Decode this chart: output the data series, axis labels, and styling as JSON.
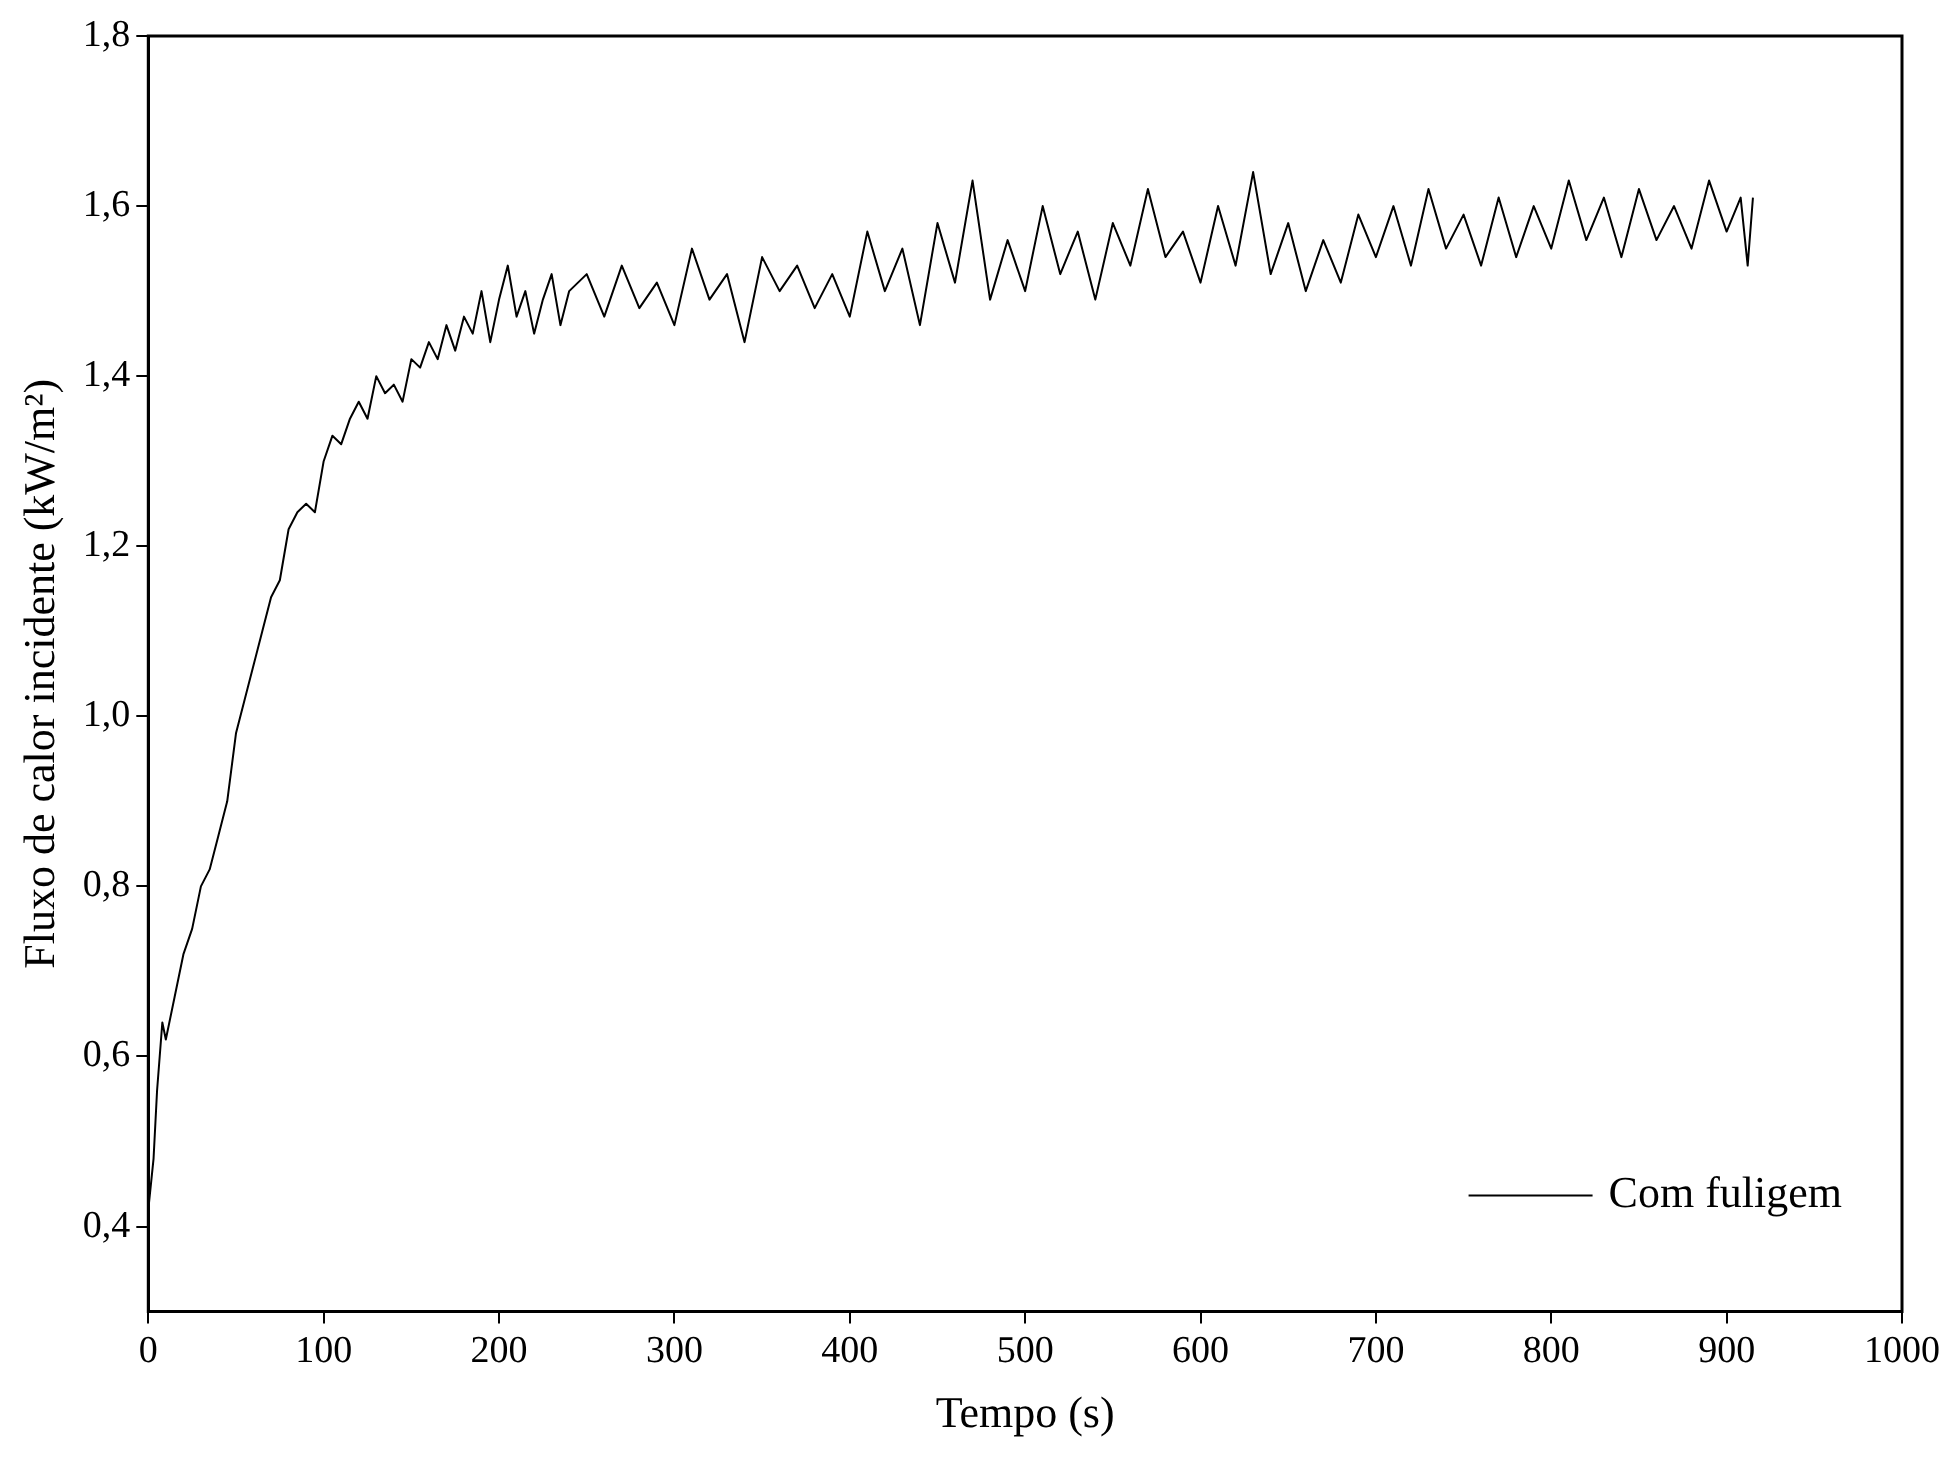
{
  "chart_data": {
    "type": "line",
    "xlabel": "Tempo (s)",
    "ylabel": "Fluxo de calor incidente (kW/m²)",
    "xlim": [
      0,
      1000
    ],
    "xticks": [
      0,
      100,
      200,
      300,
      400,
      500,
      600,
      700,
      800,
      900,
      1000
    ],
    "ylim": [
      0.3,
      1.8
    ],
    "yticks": [
      {
        "value": 0.4,
        "label": "0,4"
      },
      {
        "value": 0.6,
        "label": "0,6"
      },
      {
        "value": 0.8,
        "label": "0,8"
      },
      {
        "value": 1.0,
        "label": "1,0"
      },
      {
        "value": 1.2,
        "label": "1,2"
      },
      {
        "value": 1.4,
        "label": "1,4"
      },
      {
        "value": 1.6,
        "label": "1,6"
      },
      {
        "value": 1.8,
        "label": "1,8"
      }
    ],
    "grid": false,
    "legend": "bottom right",
    "marker": "none",
    "line_style": "solid",
    "x": [
      0,
      3,
      5,
      8,
      10,
      15,
      20,
      25,
      30,
      35,
      40,
      45,
      50,
      55,
      60,
      65,
      70,
      75,
      80,
      85,
      90,
      95,
      100,
      105,
      110,
      115,
      120,
      125,
      130,
      135,
      140,
      145,
      150,
      155,
      160,
      165,
      170,
      175,
      180,
      185,
      190,
      195,
      200,
      205,
      210,
      215,
      220,
      225,
      230,
      235,
      240,
      250,
      260,
      270,
      280,
      290,
      300,
      310,
      320,
      330,
      340,
      350,
      360,
      370,
      380,
      390,
      400,
      410,
      420,
      430,
      440,
      450,
      460,
      470,
      480,
      490,
      500,
      510,
      520,
      530,
      540,
      550,
      560,
      570,
      580,
      590,
      600,
      610,
      620,
      630,
      640,
      650,
      660,
      670,
      680,
      690,
      700,
      710,
      720,
      730,
      740,
      750,
      760,
      770,
      780,
      790,
      800,
      810,
      820,
      830,
      840,
      850,
      860,
      870,
      880,
      890,
      900,
      908,
      912,
      915
    ],
    "series": [
      {
        "name": "Com fuligem",
        "color": "#000000",
        "values": [
          0.42,
          0.48,
          0.56,
          0.64,
          0.62,
          0.67,
          0.72,
          0.75,
          0.8,
          0.82,
          0.86,
          0.9,
          0.98,
          1.02,
          1.06,
          1.1,
          1.14,
          1.16,
          1.22,
          1.24,
          1.25,
          1.24,
          1.3,
          1.33,
          1.32,
          1.35,
          1.37,
          1.35,
          1.4,
          1.38,
          1.39,
          1.37,
          1.42,
          1.41,
          1.44,
          1.42,
          1.46,
          1.43,
          1.47,
          1.45,
          1.5,
          1.44,
          1.49,
          1.53,
          1.47,
          1.5,
          1.45,
          1.49,
          1.52,
          1.46,
          1.5,
          1.52,
          1.47,
          1.53,
          1.48,
          1.51,
          1.46,
          1.55,
          1.49,
          1.52,
          1.44,
          1.54,
          1.5,
          1.53,
          1.48,
          1.52,
          1.47,
          1.57,
          1.5,
          1.55,
          1.46,
          1.58,
          1.51,
          1.63,
          1.49,
          1.56,
          1.5,
          1.6,
          1.52,
          1.57,
          1.49,
          1.58,
          1.53,
          1.62,
          1.54,
          1.57,
          1.51,
          1.6,
          1.53,
          1.64,
          1.52,
          1.58,
          1.5,
          1.56,
          1.51,
          1.59,
          1.54,
          1.6,
          1.53,
          1.62,
          1.55,
          1.59,
          1.53,
          1.61,
          1.54,
          1.6,
          1.55,
          1.63,
          1.56,
          1.61,
          1.54,
          1.62,
          1.56,
          1.6,
          1.55,
          1.63,
          1.57,
          1.61,
          1.53,
          1.61
        ]
      }
    ]
  }
}
